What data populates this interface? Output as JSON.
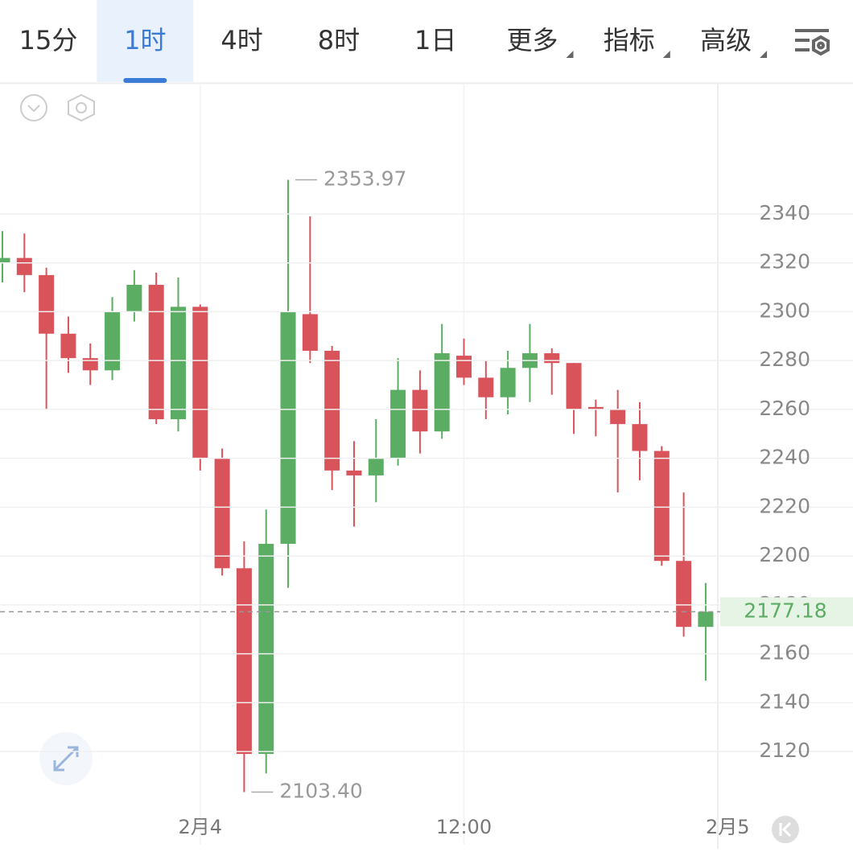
{
  "tabs": [
    "15分",
    "1时",
    "4时",
    "8时",
    "1日",
    "更多",
    "指标",
    "高级"
  ],
  "selected_tab": 1,
  "chart_data": {
    "type": "candlestick",
    "categories": [
      null,
      null,
      null,
      null,
      null,
      null,
      null,
      null,
      null,
      "2月4",
      null,
      null,
      null,
      null,
      null,
      null,
      null,
      null,
      null,
      null,
      null,
      "12:00",
      null,
      null,
      null,
      null,
      null,
      null,
      null,
      null,
      null,
      null,
      null,
      "2月5"
    ],
    "open": [
      2320,
      2322,
      2315,
      2291,
      2281,
      2276,
      2300,
      2311,
      2256,
      2302,
      2240,
      2195,
      2119,
      2205,
      2299,
      2284,
      2235,
      2233,
      2240,
      2268,
      2251,
      2282,
      2273,
      2265,
      2277,
      2283,
      2279,
      2261,
      2260,
      2254,
      2243,
      2198,
      2171,
      null
    ],
    "high": [
      2333,
      2332,
      2318,
      2298,
      2287,
      2306,
      2317,
      2316,
      2314,
      2303,
      2244,
      2206,
      2219,
      2353.97,
      2339,
      2286,
      2247,
      2256,
      2281,
      2276,
      2295,
      2289,
      2280,
      2284,
      2295,
      2285,
      2279,
      2264,
      2268,
      2263,
      2245,
      2226,
      2189,
      null
    ],
    "low": [
      2312,
      2308,
      2260,
      2275,
      2270,
      2272,
      2296,
      2254,
      2251,
      2235,
      2192,
      2103.4,
      2111,
      2187,
      2279,
      2227,
      2212,
      2222,
      2237,
      2242,
      2248,
      2270,
      2256,
      2258,
      2263,
      2266,
      2250,
      2249,
      2226,
      2231,
      2196,
      2167,
      2149,
      null
    ],
    "close": [
      2322,
      2315,
      2291,
      2281,
      2276,
      2300,
      2311,
      2256,
      2302,
      2240,
      2195,
      2119,
      2205,
      2300,
      2284,
      2235,
      2233,
      2240,
      2268,
      2251,
      2283,
      2273,
      2265,
      2277,
      2283,
      2279,
      2260,
      2260,
      2254,
      2243,
      2198,
      2171,
      2177.18,
      null
    ],
    "up_color": "#5aad62",
    "down_color": "#d9535a",
    "ylim": [
      2095,
      2393
    ],
    "yticks": [
      2120,
      2140,
      2160,
      2180,
      2200,
      2220,
      2240,
      2260,
      2280,
      2300,
      2320,
      2340
    ],
    "grid": true,
    "annotations": [
      {
        "value": 2353.97,
        "label": "2353.97"
      },
      {
        "value": 2103.4,
        "label": "2103.40"
      }
    ]
  }
}
